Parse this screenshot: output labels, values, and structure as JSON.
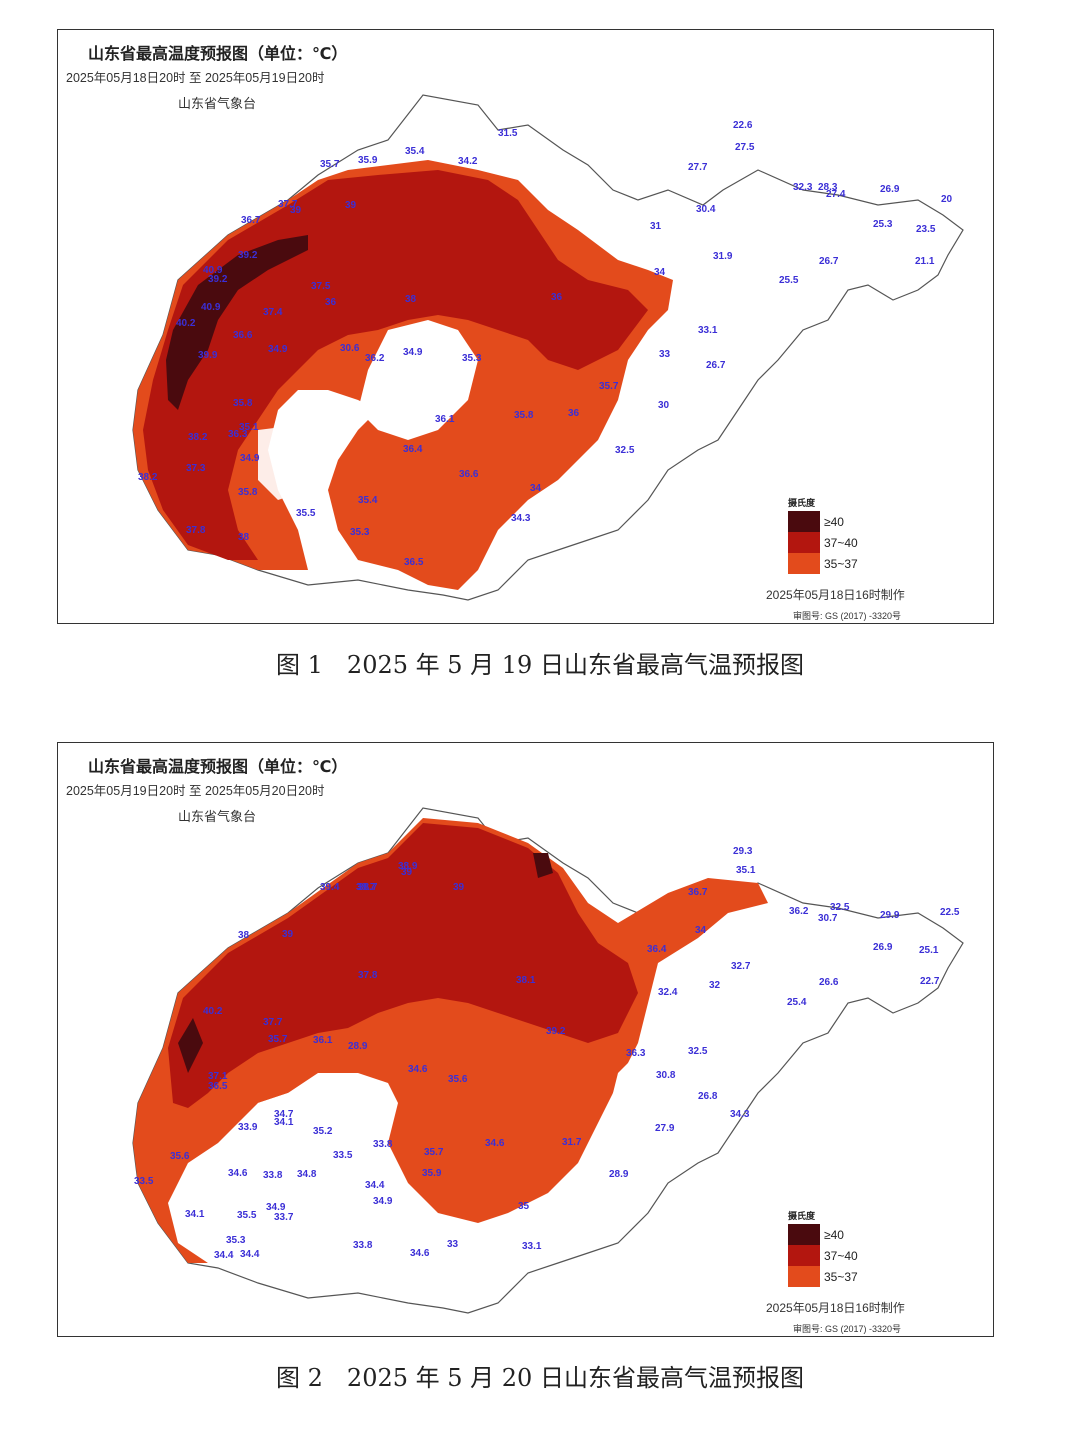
{
  "maps": [
    {
      "title": "山东省最高温度预报图（单位：℃）",
      "period": "2025年05月18日20时  至  2025年05月19日20时",
      "agency": "山东省气象台",
      "legend": {
        "title": "摄氏度",
        "items": [
          {
            "label": "≥40",
            "color": "#4a0a0e"
          },
          {
            "label": "37~40",
            "color": "#b3160f"
          },
          {
            "label": "35~37",
            "color": "#e34b1c"
          }
        ]
      },
      "made": "2025年05月18日16时制作",
      "approval": "审图号: GS (2017) -3320号",
      "caption": "图 1　2025 年 5 月 19 日山东省最高气温预报图",
      "temperatures": [
        "31.5",
        "22.6",
        "27.5",
        "35.7",
        "35.9",
        "35.4",
        "34.2",
        "27.7",
        "32.3",
        "28.3",
        "27.4",
        "26.9",
        "20",
        "30.4",
        "25.3",
        "23.5",
        "31",
        "37.7",
        "39",
        "39",
        "36.7",
        "31.9",
        "26.7",
        "21.1",
        "39.2",
        "40.9",
        "39.2",
        "37.5",
        "36",
        "38",
        "36",
        "34",
        "25.5",
        "40.9",
        "37.4",
        "40.2",
        "36.6",
        "34.9",
        "30.6",
        "34.9",
        "35.3",
        "36.2",
        "33",
        "33.1",
        "39.9",
        "35.8",
        "35.1",
        "36.1",
        "35.8",
        "36",
        "35.7",
        "26.7",
        "30",
        "38.2",
        "36.3",
        "34.9",
        "36.4",
        "36.6",
        "32.5",
        "37.3",
        "38.2",
        "35.8",
        "34",
        "35.4",
        "35.5",
        "34.3",
        "37.8",
        "38",
        "35.3",
        "36.5"
      ]
    },
    {
      "title": "山东省最高温度预报图（单位：℃）",
      "period": "2025年05月19日20时  至  2025年05月20日20时",
      "agency": "山东省气象台",
      "legend": {
        "title": "摄氏度",
        "items": [
          {
            "label": "≥40",
            "color": "#4a0a0e"
          },
          {
            "label": "37~40",
            "color": "#b3160f"
          },
          {
            "label": "35~37",
            "color": "#e34b1c"
          }
        ]
      },
      "made": "2025年05月18日16时制作",
      "approval": "审图号: GS (2017) -3320号",
      "caption": "图 2　2025 年 5 月 20 日山东省最高气温预报图",
      "temperatures": [
        "38.9",
        "39",
        "38.7",
        "29.3",
        "35.1",
        "39.4",
        "38.7",
        "39",
        "36.7",
        "36.2",
        "32.5",
        "30.7",
        "29.9",
        "22.5",
        "34",
        "26.9",
        "25.1",
        "38",
        "39",
        "36.4",
        "32.7",
        "26.6",
        "22.7",
        "40.2",
        "37.7",
        "37.8",
        "38.1",
        "32",
        "32.4",
        "25.4",
        "39.2",
        "35.7",
        "36.1",
        "28.9",
        "34.6",
        "35.6",
        "36.3",
        "32.5",
        "30.8",
        "37.1",
        "36.5",
        "34.7",
        "34.3",
        "26.8",
        "27.9",
        "33.9",
        "34.1",
        "35.2",
        "33.5",
        "33.8",
        "35.7",
        "34.6",
        "31.7",
        "35.6",
        "34.6",
        "33.8",
        "34.8",
        "34.4",
        "35.9",
        "28.9",
        "34.9",
        "34.9",
        "33.5",
        "34.1",
        "35.5",
        "33.7",
        "33.1",
        "33",
        "35",
        "35.3",
        "34.4",
        "34.4",
        "33.8",
        "34.6"
      ]
    }
  ]
}
